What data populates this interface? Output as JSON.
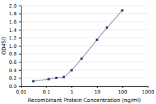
{
  "chart_data": {
    "type": "line",
    "x": [
      0.031,
      0.125,
      0.25,
      0.5,
      1,
      2.5,
      10,
      25,
      100
    ],
    "values": [
      0.12,
      0.17,
      0.2,
      0.22,
      0.39,
      0.68,
      1.15,
      1.45,
      1.88
    ],
    "color": "#1a2a6a",
    "marker": "square",
    "xlabel": "Recombinant Protein Concentration (ng/ml)",
    "ylabel": "OD450",
    "log": "x",
    "grid": true,
    "xlim": [
      0.01,
      1000
    ],
    "ylim": [
      0,
      2
    ],
    "xticks": [
      0.01,
      0.1,
      1,
      10,
      100,
      1000
    ],
    "yticks": [
      {
        "value": 0,
        "label": "0.0"
      },
      0.2,
      0.4,
      0.6,
      0.8,
      {
        "value": 1,
        "label": "1.0"
      },
      1.2,
      1.4,
      1.6,
      1.8,
      {
        "value": 2,
        "label": "2.0"
      }
    ]
  }
}
